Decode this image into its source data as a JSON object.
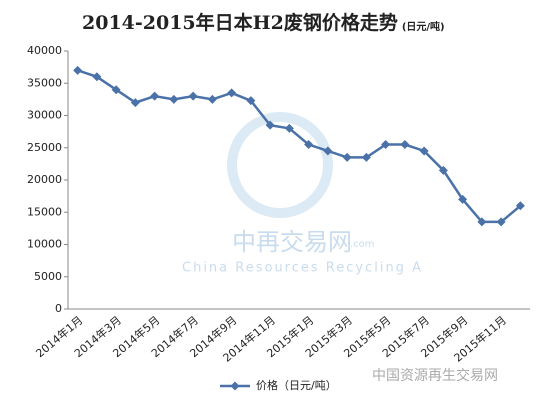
{
  "chart_data": {
    "type": "line",
    "title": "2014-2015年日本H2废钢价格走势",
    "subtitle": "(日元/吨)",
    "categories": [
      "2014年1月",
      null,
      "2014年3月",
      null,
      "2014年5月",
      null,
      "2014年7月",
      null,
      "2014年9月",
      null,
      "2014年11月",
      null,
      "2015年1月",
      null,
      "2015年3月",
      null,
      "2015年5月",
      null,
      "2015年7月",
      null,
      "2015年9月",
      null,
      "2015年11月",
      null
    ],
    "series": [
      {
        "name": "价格（日元/吨）",
        "color": "#4a72a8",
        "values": [
          37000,
          36000,
          34000,
          32000,
          33000,
          32500,
          33000,
          32500,
          33500,
          32300,
          28500,
          28000,
          25500,
          24500,
          23500,
          23500,
          25500,
          25500,
          24500,
          21500,
          17000,
          13500,
          13500,
          16000
        ]
      }
    ],
    "ylim": [
      0,
      40000
    ],
    "yticks": [
      0,
      5000,
      10000,
      15000,
      20000,
      25000,
      30000,
      35000,
      40000
    ],
    "grid": false,
    "legend": "bottom",
    "watermarks": [
      "中再交易网",
      ".com",
      "China Resources Recycling A",
      "中国资源再生交易网"
    ]
  }
}
